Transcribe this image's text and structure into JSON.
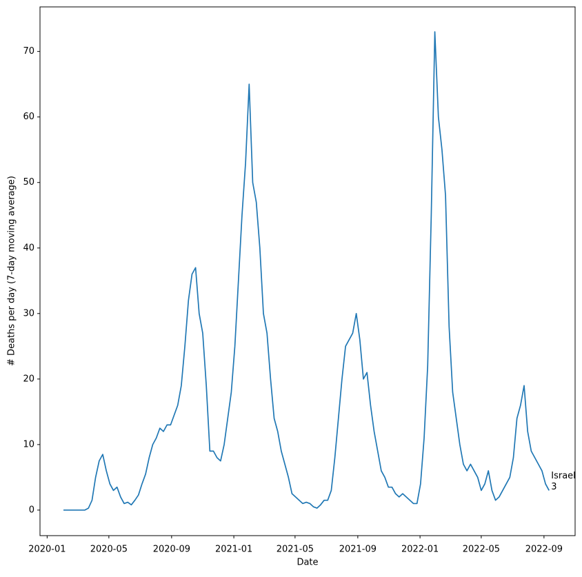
{
  "chart_data": {
    "type": "line",
    "xlabel": "Date",
    "ylabel": "# Deaths per day (7-day moving average)",
    "annotation_lines": [
      "Israel",
      "3"
    ],
    "color": "#1f77b4",
    "x": [
      "2020-02-02",
      "2020-02-09",
      "2020-02-16",
      "2020-02-23",
      "2020-03-01",
      "2020-03-08",
      "2020-03-15",
      "2020-03-22",
      "2020-03-29",
      "2020-04-05",
      "2020-04-12",
      "2020-04-19",
      "2020-04-26",
      "2020-05-03",
      "2020-05-10",
      "2020-05-17",
      "2020-05-24",
      "2020-05-31",
      "2020-06-07",
      "2020-06-14",
      "2020-06-21",
      "2020-06-28",
      "2020-07-05",
      "2020-07-12",
      "2020-07-19",
      "2020-07-26",
      "2020-08-02",
      "2020-08-09",
      "2020-08-16",
      "2020-08-23",
      "2020-08-30",
      "2020-09-06",
      "2020-09-13",
      "2020-09-20",
      "2020-09-27",
      "2020-10-04",
      "2020-10-11",
      "2020-10-18",
      "2020-10-25",
      "2020-11-01",
      "2020-11-08",
      "2020-11-15",
      "2020-11-22",
      "2020-11-29",
      "2020-12-06",
      "2020-12-13",
      "2020-12-20",
      "2020-12-27",
      "2021-01-03",
      "2021-01-10",
      "2021-01-17",
      "2021-01-24",
      "2021-01-31",
      "2021-02-07",
      "2021-02-14",
      "2021-02-21",
      "2021-02-28",
      "2021-03-07",
      "2021-03-14",
      "2021-03-21",
      "2021-03-28",
      "2021-04-04",
      "2021-04-11",
      "2021-04-18",
      "2021-04-25",
      "2021-05-02",
      "2021-05-09",
      "2021-05-16",
      "2021-05-23",
      "2021-05-30",
      "2021-06-06",
      "2021-06-13",
      "2021-06-20",
      "2021-06-27",
      "2021-07-04",
      "2021-07-11",
      "2021-07-18",
      "2021-07-25",
      "2021-08-01",
      "2021-08-08",
      "2021-08-15",
      "2021-08-22",
      "2021-08-29",
      "2021-09-05",
      "2021-09-12",
      "2021-09-19",
      "2021-09-26",
      "2021-10-03",
      "2021-10-10",
      "2021-10-17",
      "2021-10-24",
      "2021-10-31",
      "2021-11-07",
      "2021-11-14",
      "2021-11-21",
      "2021-11-28",
      "2021-12-05",
      "2021-12-12",
      "2021-12-19",
      "2021-12-26",
      "2022-01-02",
      "2022-01-09",
      "2022-01-16",
      "2022-01-23",
      "2022-01-30",
      "2022-02-06",
      "2022-02-13",
      "2022-02-20",
      "2022-02-27",
      "2022-03-06",
      "2022-03-13",
      "2022-03-20",
      "2022-03-27",
      "2022-04-03",
      "2022-04-10",
      "2022-04-17",
      "2022-04-24",
      "2022-05-01",
      "2022-05-08",
      "2022-05-15",
      "2022-05-22",
      "2022-05-29",
      "2022-06-05",
      "2022-06-12",
      "2022-06-19",
      "2022-06-26",
      "2022-07-03",
      "2022-07-10",
      "2022-07-17",
      "2022-07-24",
      "2022-07-31",
      "2022-08-07",
      "2022-08-14",
      "2022-08-21",
      "2022-08-28",
      "2022-09-04",
      "2022-09-11"
    ],
    "values": [
      0,
      0,
      0,
      0,
      0,
      0,
      0,
      0.3,
      1.5,
      5,
      7.5,
      8.5,
      6,
      4,
      3,
      3.5,
      2,
      1,
      1.2,
      0.8,
      1.5,
      2.3,
      4,
      5.5,
      8,
      10,
      11,
      12.5,
      12,
      13,
      13,
      14.5,
      16,
      19,
      25,
      32,
      36,
      37,
      30,
      27,
      19,
      9,
      9,
      8,
      7.5,
      10,
      14,
      18,
      25,
      35,
      45,
      53,
      65,
      50,
      47,
      40,
      30,
      27,
      20,
      14,
      12,
      9,
      7,
      5,
      2.5,
      2,
      1.5,
      1,
      1.2,
      1,
      0.5,
      0.3,
      0.8,
      1.5,
      1.5,
      3,
      8,
      14,
      20,
      25,
      26,
      27,
      30,
      26,
      20,
      21,
      16,
      12,
      9,
      6,
      5,
      3.5,
      3.5,
      2.5,
      2,
      2.5,
      2,
      1.5,
      1,
      1,
      4,
      11,
      22,
      45,
      73,
      60,
      55,
      48,
      28,
      18,
      14,
      10,
      7,
      6,
      7,
      6,
      5,
      3,
      4,
      6,
      3,
      1.5,
      2,
      3,
      4,
      5,
      8,
      14,
      16,
      19,
      12,
      9,
      8,
      7,
      6,
      4,
      3
    ],
    "xlim": [
      "2019-12-18",
      "2022-11-01"
    ],
    "xticks": [
      "2020-01",
      "2020-05",
      "2020-09",
      "2021-01",
      "2021-05",
      "2021-09",
      "2022-01",
      "2022-05",
      "2022-09"
    ],
    "ylim": [
      -3.9,
      76.8
    ],
    "yticks": [
      0,
      10,
      20,
      30,
      40,
      50,
      60,
      70
    ]
  }
}
